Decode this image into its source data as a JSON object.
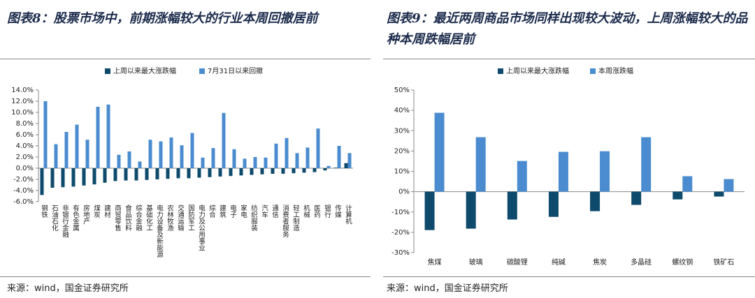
{
  "chart_data": [
    {
      "type": "bar",
      "title": "图表8：股票市场中，前期涨幅较大的行业本周回撤居前",
      "source": "来源：wind，国金证券研究所",
      "categories": [
        "钢铁",
        "石油石化",
        "非银行金融",
        "有色金属",
        "房地产",
        "煤炭",
        "建材",
        "商贸零售",
        "食品饮料",
        "综合金融",
        "基础化工",
        "电力设备及新能源",
        "农林牧渔",
        "交通运输",
        "国防军工",
        "电力及公用事业",
        "综合",
        "建筑",
        "电子",
        "家电",
        "纺织服装",
        "汽车",
        "通信",
        "消费者服务",
        "轻工制造",
        "机械",
        "医药",
        "银行",
        "传媒",
        "计算机"
      ],
      "series": [
        {
          "name": "上周以来最大涨跌幅",
          "color": "#0d4a6b",
          "values": [
            -4.8,
            -3.5,
            -3.4,
            -3.3,
            -3.1,
            -2.9,
            -2.6,
            -2.3,
            -2.2,
            -2.2,
            -2.1,
            -2.0,
            -1.9,
            -1.8,
            -1.8,
            -1.7,
            -1.6,
            -1.5,
            -1.4,
            -1.3,
            -1.2,
            -1.1,
            -1.0,
            -1.0,
            -0.9,
            -0.8,
            -0.7,
            -0.4,
            0.1,
            0.9
          ]
        },
        {
          "name": "7月31日以来回撤",
          "color": "#4a8ccf",
          "values": [
            12.0,
            4.3,
            6.5,
            7.8,
            5.1,
            11.0,
            11.4,
            2.4,
            3.0,
            1.2,
            5.1,
            4.8,
            5.5,
            4.1,
            6.3,
            1.9,
            3.6,
            9.9,
            3.4,
            1.7,
            2.0,
            1.9,
            4.4,
            5.4,
            2.7,
            3.7,
            7.1,
            0.4,
            4.0,
            2.7
          ]
        }
      ],
      "ylim": [
        -6,
        14
      ],
      "yticks": [
        {
          "value": -6,
          "label": "-6.0%"
        },
        {
          "value": -4,
          "label": "-4.0%"
        },
        {
          "value": -2,
          "label": "-2.0%"
        },
        {
          "value": 0,
          "label": "0.0%"
        },
        {
          "value": 2,
          "label": "2.0%"
        },
        {
          "value": 4,
          "label": "4.0%"
        },
        {
          "value": 6,
          "label": "6.0%"
        },
        {
          "value": 8,
          "label": "8.0%"
        },
        {
          "value": 10,
          "label": "10.0%"
        },
        {
          "value": 12,
          "label": "12.0%"
        },
        {
          "value": 14,
          "label": "14.0%"
        }
      ]
    },
    {
      "type": "bar",
      "title": "图表9：最近两周商品市场同样出现较大波动，上周涨幅较大的品种本周跌幅居前",
      "source": "来源：wind，国金证券研究所",
      "categories": [
        "焦煤",
        "玻璃",
        "碳酸锂",
        "纯碱",
        "焦炭",
        "多晶硅",
        "螺纹钢",
        "铁矿石"
      ],
      "series": [
        {
          "name": "上周以来最大涨跌幅",
          "color": "#0d4a6b",
          "values": [
            -18.9,
            -18.2,
            -13.7,
            -12.4,
            -9.6,
            -6.5,
            -3.8,
            -2.4
          ]
        },
        {
          "name": "本周涨跌幅",
          "color": "#4a8ccf",
          "values": [
            38.8,
            26.8,
            15.1,
            19.6,
            19.9,
            26.8,
            7.6,
            6.2
          ]
        }
      ],
      "ylim": [
        -30,
        50
      ],
      "yticks": [
        {
          "value": -30,
          "label": "-30%"
        },
        {
          "value": -20,
          "label": "-20%"
        },
        {
          "value": -10,
          "label": "-10%"
        },
        {
          "value": 0,
          "label": "0%"
        },
        {
          "value": 10,
          "label": "10%"
        },
        {
          "value": 20,
          "label": "20%"
        },
        {
          "value": 30,
          "label": "30%"
        },
        {
          "value": 40,
          "label": "40%"
        },
        {
          "value": 50,
          "label": "50%"
        }
      ]
    }
  ]
}
